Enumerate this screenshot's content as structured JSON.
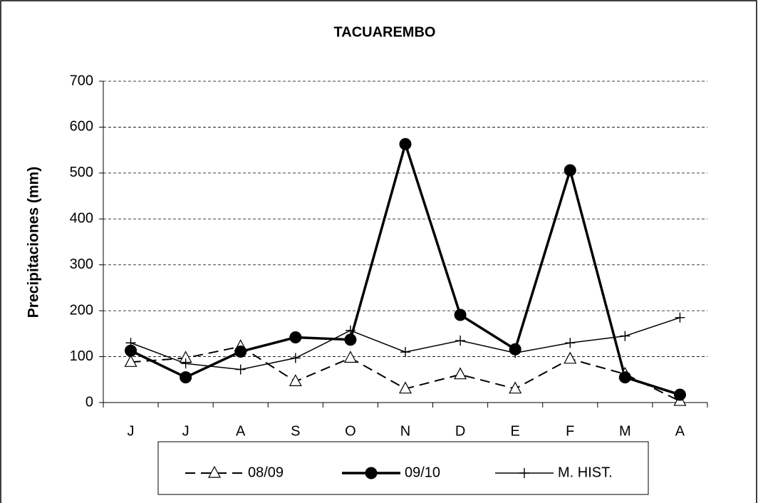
{
  "chart_data": {
    "type": "line",
    "title": "TACUAREMBO",
    "y_label": "Precipitaciones (mm)",
    "categories": [
      "J",
      "J",
      "A",
      "S",
      "O",
      "N",
      "D",
      "E",
      "F",
      "M",
      "A"
    ],
    "series": [
      {
        "name": "08/09",
        "color": "#000000",
        "dash": true,
        "marker": "triangle",
        "width": 2,
        "values": [
          88,
          97,
          122,
          46,
          97,
          30,
          61,
          30,
          95,
          62,
          3
        ]
      },
      {
        "name": "09/10",
        "color": "#000000",
        "dash": false,
        "marker": "circle",
        "width": 3.5,
        "values": [
          113,
          55,
          111,
          142,
          137,
          563,
          191,
          116,
          506,
          55,
          17
        ]
      },
      {
        "name": "M. HIST.",
        "color": "#000000",
        "dash": false,
        "marker": "plus",
        "width": 1.5,
        "values": [
          130,
          85,
          72,
          97,
          157,
          110,
          135,
          108,
          130,
          145,
          185
        ]
      }
    ],
    "ylim": [
      0,
      700
    ],
    "yticks": [
      0,
      100,
      200,
      300,
      400,
      500,
      600,
      700
    ],
    "grid": true,
    "legend": "bottom"
  }
}
